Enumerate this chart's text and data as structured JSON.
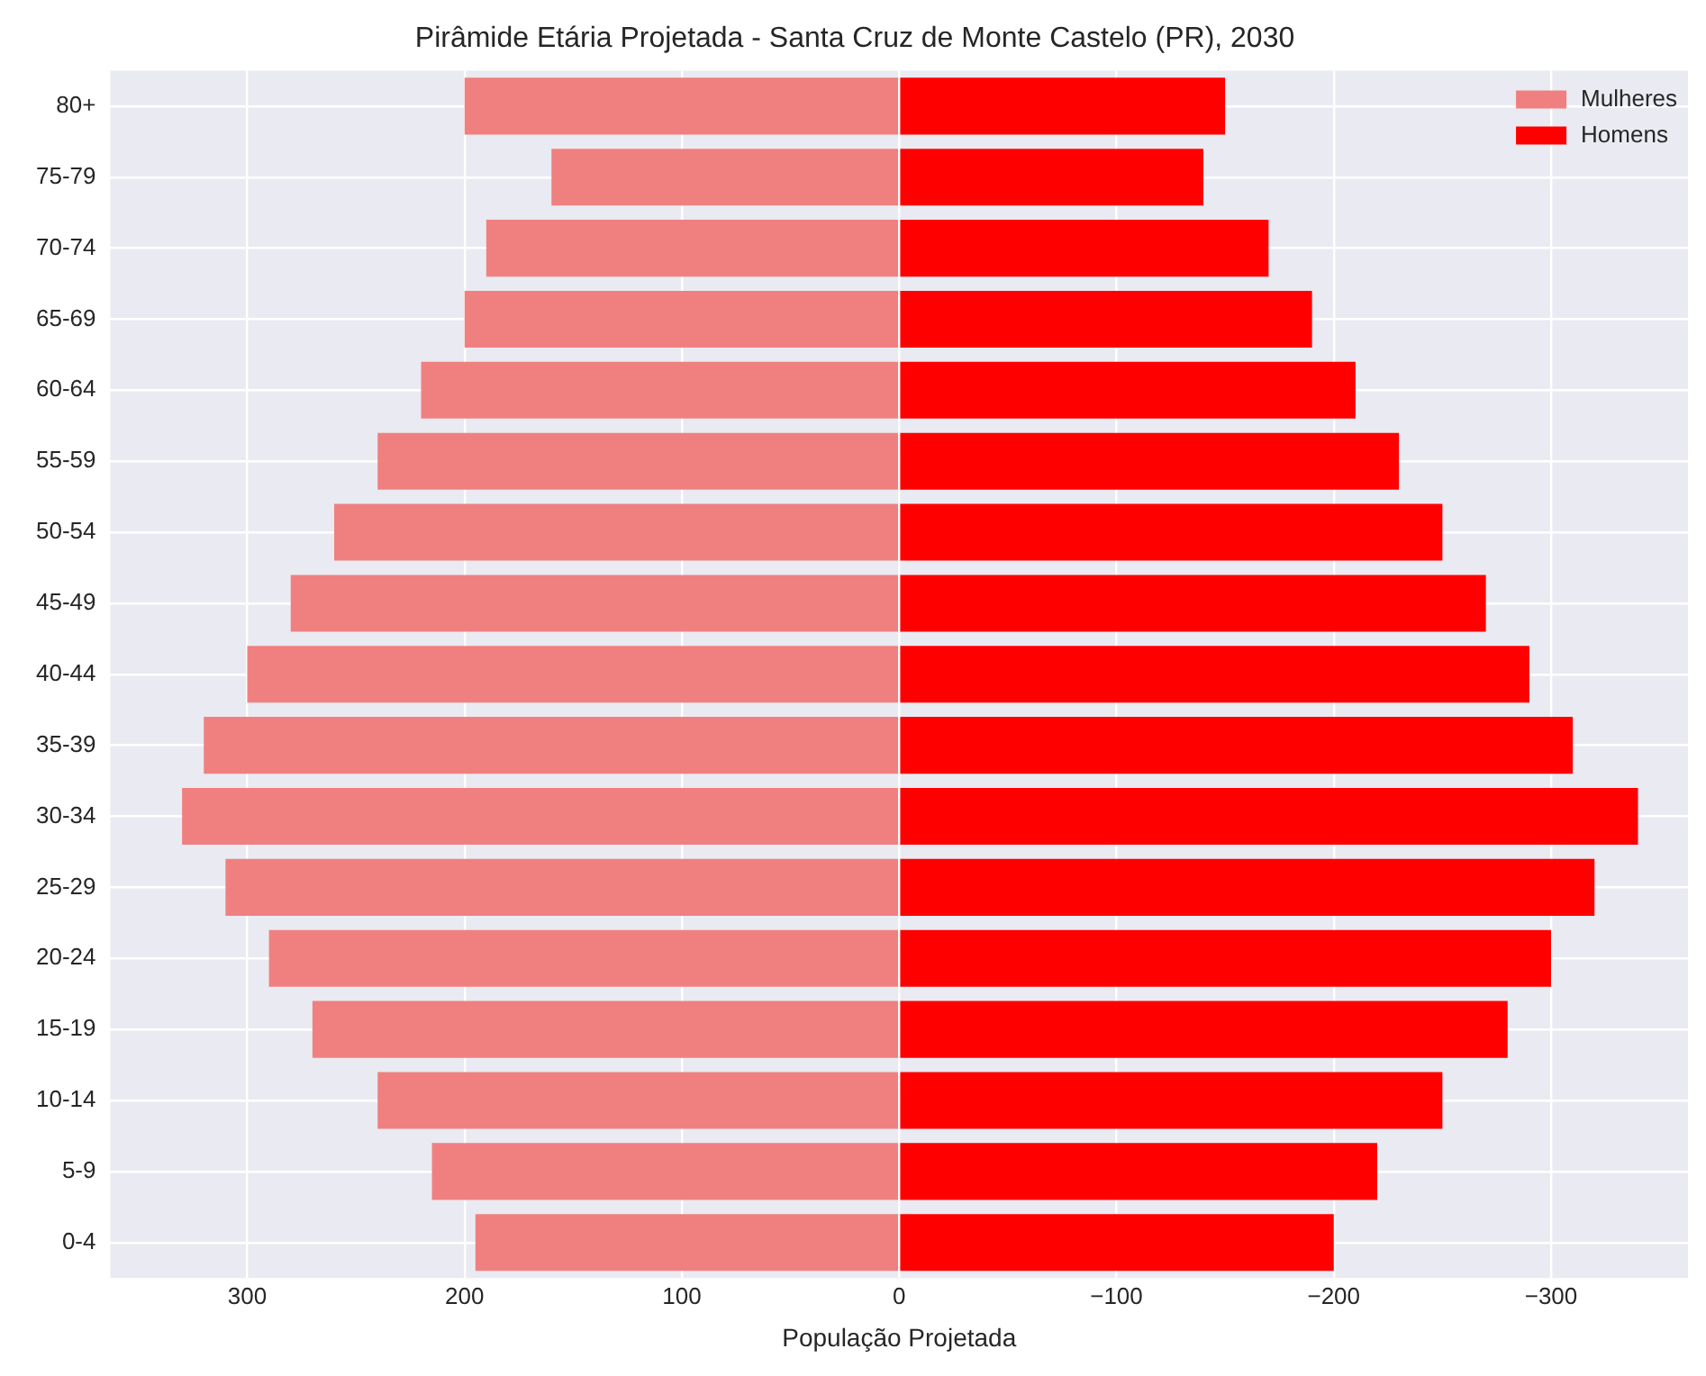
{
  "chart_data": {
    "type": "bar",
    "orientation": "horizontal",
    "title": "Pirâmide Etária Projetada - Santa Cruz de Monte Castelo (PR), 2030",
    "xlabel": "População Projetada",
    "categories": [
      "80+",
      "75-79",
      "70-74",
      "65-69",
      "60-64",
      "55-59",
      "50-54",
      "45-49",
      "40-44",
      "35-39",
      "30-34",
      "25-29",
      "20-24",
      "15-19",
      "10-14",
      "5-9",
      "0-4"
    ],
    "series": [
      {
        "name": "Mulheres",
        "color": "#f08080",
        "values": [
          200,
          160,
          190,
          200,
          220,
          240,
          260,
          280,
          300,
          320,
          330,
          310,
          290,
          270,
          240,
          215,
          195
        ]
      },
      {
        "name": "Homens",
        "color": "#ff0000",
        "values": [
          -150,
          -140,
          -170,
          -190,
          -210,
          -230,
          -250,
          -270,
          -290,
          -310,
          -340,
          -320,
          -300,
          -280,
          -250,
          -220,
          -200
        ]
      }
    ],
    "xlim": [
      363,
      -363
    ],
    "xticks": [
      300,
      200,
      100,
      0,
      {
        "value": -100,
        "label": "−100"
      },
      {
        "value": -200,
        "label": "−200"
      },
      {
        "value": -300,
        "label": "−300"
      }
    ],
    "stacked": true,
    "grid": true,
    "legend": "top right"
  }
}
